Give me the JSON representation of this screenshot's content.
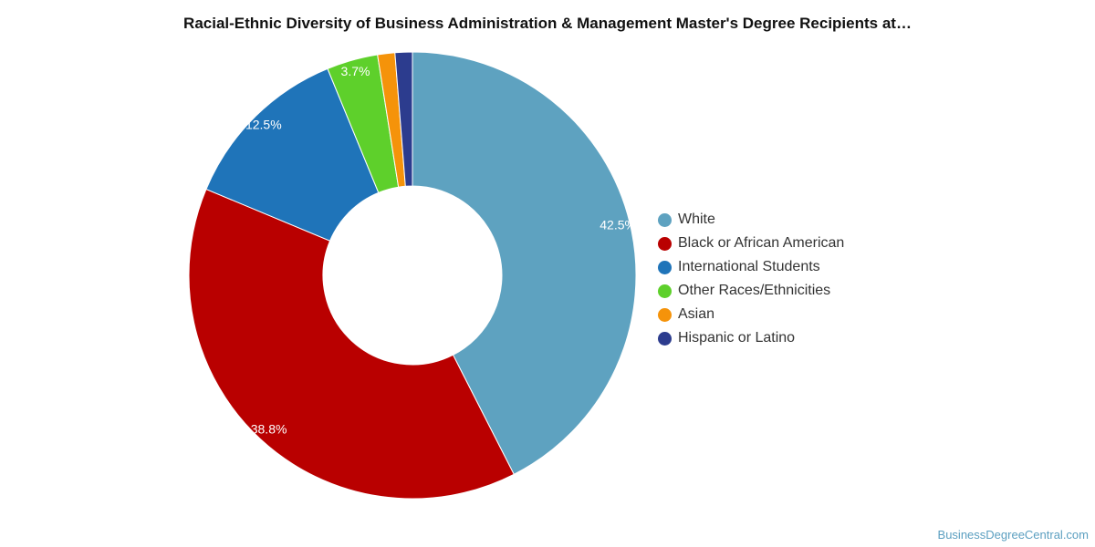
{
  "chart_data": {
    "type": "pie",
    "title": "Racial-Ethnic Diversity of Business Administration & Management Master's Degree Recipients at…",
    "slices": [
      {
        "label": "White",
        "value": 42.5,
        "display": "42.5%",
        "color": "#5ea2c0"
      },
      {
        "label": "Black or African American",
        "value": 38.8,
        "display": "38.8%",
        "color": "#b90000"
      },
      {
        "label": "International Students",
        "value": 12.5,
        "display": "12.5%",
        "color": "#1f74b9"
      },
      {
        "label": "Other Races/Ethnicities",
        "value": 3.7,
        "display": "3.7%",
        "color": "#5ed02b"
      },
      {
        "label": "Asian",
        "value": 1.25,
        "display": "",
        "color": "#f5930a"
      },
      {
        "label": "Hispanic or Latino",
        "value": 1.25,
        "display": "",
        "color": "#2c3c8e"
      }
    ],
    "legend_position": "right"
  },
  "credit": "BusinessDegreeCentral.com"
}
